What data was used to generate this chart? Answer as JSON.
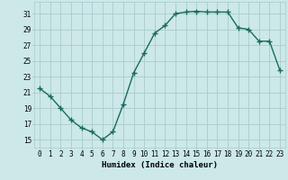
{
  "x": [
    0,
    1,
    2,
    3,
    4,
    5,
    6,
    7,
    8,
    9,
    10,
    11,
    12,
    13,
    14,
    15,
    16,
    17,
    18,
    19,
    20,
    21,
    22,
    23
  ],
  "y": [
    21.5,
    20.5,
    19.0,
    17.5,
    16.5,
    16.0,
    15.0,
    16.0,
    19.5,
    23.5,
    26.0,
    28.5,
    29.5,
    31.0,
    31.2,
    31.3,
    31.2,
    31.2,
    31.2,
    29.2,
    29.0,
    27.5,
    27.5,
    23.8
  ],
  "xlabel": "Humidex (Indice chaleur)",
  "bg_color": "#cce8e8",
  "grid_color": "#aacccc",
  "line_color": "#1a6b5a",
  "marker_color": "#1a6b5a",
  "xlim": [
    -0.5,
    23.5
  ],
  "ylim": [
    14,
    32.5
  ],
  "yticks": [
    15,
    17,
    19,
    21,
    23,
    25,
    27,
    29,
    31
  ],
  "xticks": [
    0,
    1,
    2,
    3,
    4,
    5,
    6,
    7,
    8,
    9,
    10,
    11,
    12,
    13,
    14,
    15,
    16,
    17,
    18,
    19,
    20,
    21,
    22,
    23
  ],
  "xtick_labels": [
    "0",
    "1",
    "2",
    "3",
    "4",
    "5",
    "6",
    "7",
    "8",
    "9",
    "10",
    "11",
    "12",
    "13",
    "14",
    "15",
    "16",
    "17",
    "18",
    "19",
    "20",
    "21",
    "22",
    "23"
  ],
  "xlabel_fontsize": 6.5,
  "tick_fontsize": 5.5,
  "marker_size": 2.5,
  "line_width": 1.0
}
